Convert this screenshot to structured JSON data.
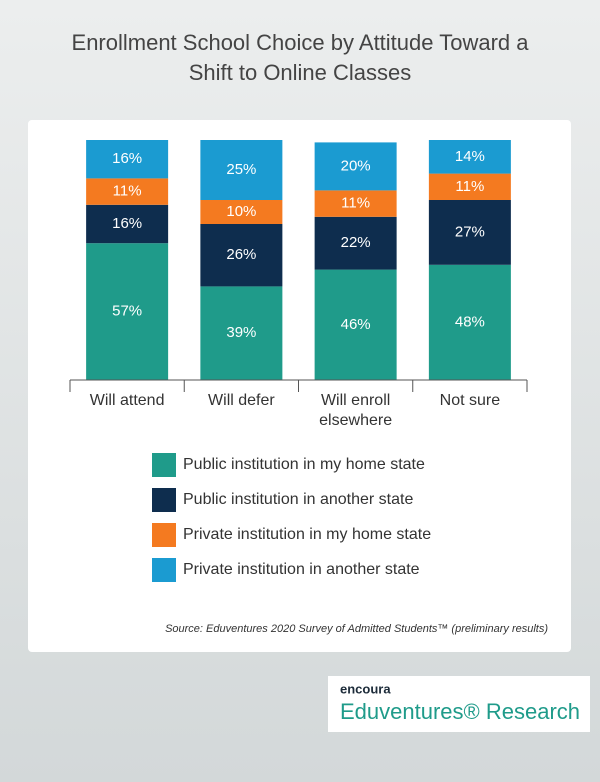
{
  "chart_data": {
    "type": "stacked_bar",
    "title": "Enrollment School Choice by Attitude Toward a Shift to Online Classes",
    "categories": [
      "Will attend",
      "Will defer",
      "Will enroll elsewhere",
      "Not sure"
    ],
    "series": [
      {
        "name": "Public institution in my home state",
        "color": "#1f9b8a",
        "values": [
          57,
          39,
          46,
          48
        ],
        "value_labels": [
          "57%",
          "39%",
          "46%",
          "48%"
        ]
      },
      {
        "name": "Public institution in another state",
        "color": "#0e2d4e",
        "values": [
          16,
          26,
          22,
          27
        ],
        "value_labels": [
          "16%",
          "26%",
          "22%",
          "27%"
        ]
      },
      {
        "name": "Private institution in my home state",
        "color": "#f47a20",
        "values": [
          11,
          10,
          11,
          11
        ],
        "value_labels": [
          "11%",
          "10%",
          "11%",
          "11%"
        ]
      },
      {
        "name": "Private institution in another state",
        "color": "#1b9bd1",
        "values": [
          16,
          25,
          20,
          14
        ],
        "value_labels": [
          "16%",
          "25%",
          "20%",
          "14%"
        ]
      }
    ],
    "ylim": [
      0,
      100
    ],
    "source": "Source: Eduventures 2020 Survey of Admitted Students™ (preliminary results)"
  },
  "brand": {
    "logo": "encoura",
    "name": "Eduventures® Research"
  }
}
